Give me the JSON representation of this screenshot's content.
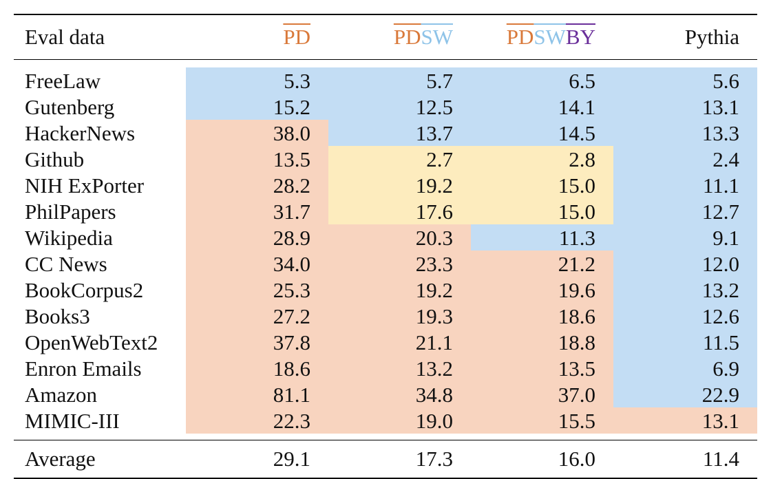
{
  "header": {
    "eval_label": "Eval data",
    "cols": [
      {
        "parts": [
          {
            "text": "PD",
            "color": "#d9793a"
          }
        ]
      },
      {
        "parts": [
          {
            "text": "PD",
            "color": "#d9793a"
          },
          {
            "text": "SW",
            "color": "#8ec3e8"
          }
        ]
      },
      {
        "parts": [
          {
            "text": "PD",
            "color": "#d9793a"
          },
          {
            "text": "SW",
            "color": "#8ec3e8"
          },
          {
            "text": "BY",
            "color": "#6a2f9a"
          }
        ]
      },
      {
        "parts": [
          {
            "text": "Pythia",
            "color": "#111111"
          }
        ]
      }
    ]
  },
  "legend_colors": {
    "blue": "#c3ddf4",
    "orange": "#f8d4bf",
    "yellow": "#fdecbe"
  },
  "rows": [
    {
      "name": "FreeLaw",
      "values": [
        "5.3",
        "5.7",
        "6.5",
        "5.6"
      ],
      "shade": [
        "b",
        "b",
        "b",
        "b"
      ]
    },
    {
      "name": "Gutenberg",
      "values": [
        "15.2",
        "12.5",
        "14.1",
        "13.1"
      ],
      "shade": [
        "b",
        "b",
        "b",
        "b"
      ]
    },
    {
      "name": "HackerNews",
      "values": [
        "38.0",
        "13.7",
        "14.5",
        "13.3"
      ],
      "shade": [
        "o",
        "b",
        "b",
        "b"
      ]
    },
    {
      "name": "Github",
      "values": [
        "13.5",
        "2.7",
        "2.8",
        "2.4"
      ],
      "shade": [
        "o",
        "y",
        "y",
        "b"
      ]
    },
    {
      "name": "NIH ExPorter",
      "values": [
        "28.2",
        "19.2",
        "15.0",
        "11.1"
      ],
      "shade": [
        "o",
        "y",
        "y",
        "b"
      ]
    },
    {
      "name": "PhilPapers",
      "values": [
        "31.7",
        "17.6",
        "15.0",
        "12.7"
      ],
      "shade": [
        "o",
        "y",
        "y",
        "b"
      ]
    },
    {
      "name": "Wikipedia",
      "values": [
        "28.9",
        "20.3",
        "11.3",
        "9.1"
      ],
      "shade": [
        "o",
        "o",
        "b",
        "b"
      ]
    },
    {
      "name": "CC News",
      "values": [
        "34.0",
        "23.3",
        "21.2",
        "12.0"
      ],
      "shade": [
        "o",
        "o",
        "o",
        "b"
      ]
    },
    {
      "name": "BookCorpus2",
      "values": [
        "25.3",
        "19.2",
        "19.6",
        "13.2"
      ],
      "shade": [
        "o",
        "o",
        "o",
        "b"
      ]
    },
    {
      "name": "Books3",
      "values": [
        "27.2",
        "19.3",
        "18.6",
        "12.6"
      ],
      "shade": [
        "o",
        "o",
        "o",
        "b"
      ]
    },
    {
      "name": "OpenWebText2",
      "values": [
        "37.8",
        "21.1",
        "18.8",
        "11.5"
      ],
      "shade": [
        "o",
        "o",
        "o",
        "b"
      ]
    },
    {
      "name": "Enron Emails",
      "values": [
        "18.6",
        "13.2",
        "13.5",
        "6.9"
      ],
      "shade": [
        "o",
        "o",
        "o",
        "b"
      ]
    },
    {
      "name": "Amazon",
      "values": [
        "81.1",
        "34.8",
        "37.0",
        "22.9"
      ],
      "shade": [
        "o",
        "o",
        "o",
        "b"
      ]
    },
    {
      "name": "MIMIC-III",
      "values": [
        "22.3",
        "19.0",
        "15.5",
        "13.1"
      ],
      "shade": [
        "o",
        "o",
        "o",
        "o"
      ]
    }
  ],
  "average": {
    "label": "Average",
    "values": [
      "29.1",
      "17.3",
      "16.0",
      "11.4"
    ]
  }
}
